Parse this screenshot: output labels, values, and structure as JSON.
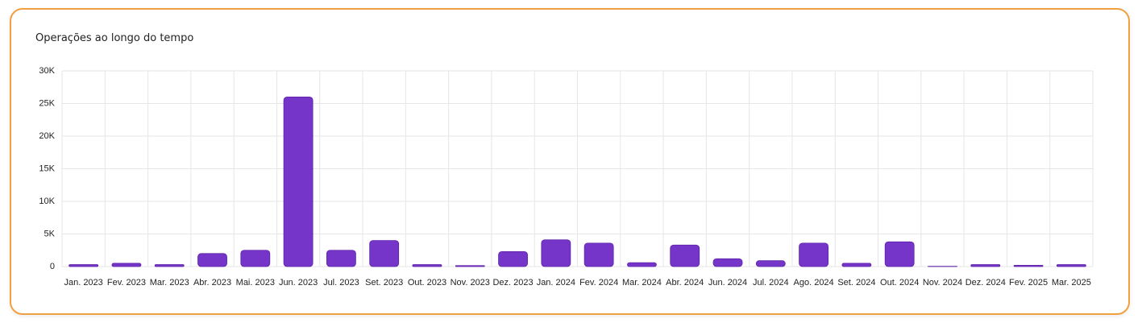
{
  "title": "Operações ao longo do tempo",
  "chart_data": {
    "type": "bar",
    "categories": [
      "Jan. 2023",
      "Fev. 2023",
      "Mar. 2023",
      "Abr. 2023",
      "Mai. 2023",
      "Jun. 2023",
      "Jul. 2023",
      "Set. 2023",
      "Out. 2023",
      "Nov. 2023",
      "Dez. 2023",
      "Jan. 2024",
      "Fev. 2024",
      "Mar. 2024",
      "Abr. 2024",
      "Jun. 2024",
      "Jul. 2024",
      "Ago. 2024",
      "Set. 2024",
      "Out. 2024",
      "Nov. 2024",
      "Dez. 2024",
      "Fev. 2025",
      "Mar. 2025"
    ],
    "values": [
      300,
      500,
      300,
      2000,
      2500,
      26000,
      2500,
      4000,
      300,
      150,
      2300,
      4100,
      3600,
      600,
      3300,
      1200,
      900,
      3600,
      500,
      3800,
      50,
      300,
      200,
      300
    ],
    "color": "#7635c9",
    "ylim": [
      0,
      30000
    ],
    "yticks": [
      0,
      {
        "value": 5000,
        "label": "5K"
      },
      {
        "value": 10000,
        "label": "10K"
      },
      {
        "value": 15000,
        "label": "15K"
      },
      {
        "value": 20000,
        "label": "20K"
      },
      {
        "value": 25000,
        "label": "25K"
      },
      {
        "value": 30000,
        "label": "30K"
      }
    ],
    "grid": true
  }
}
